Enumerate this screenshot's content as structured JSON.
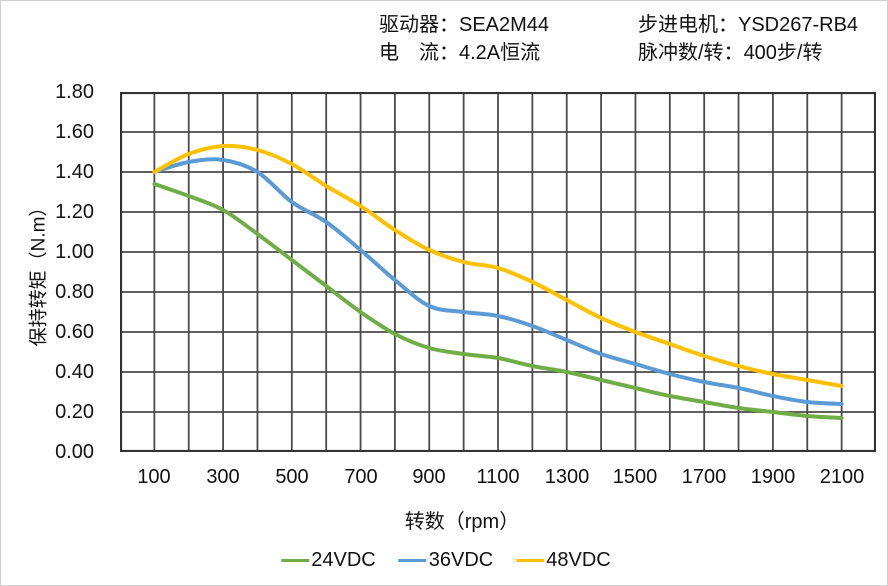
{
  "header": {
    "left": [
      {
        "label": "驱动器：",
        "value": "SEA2M44"
      },
      {
        "label": "电　流：",
        "value": "4.2A恒流"
      }
    ],
    "right": [
      {
        "label": "步进电机：",
        "value": "YSD267-RB4"
      },
      {
        "label": "脉冲数/转：",
        "value": "400步/转"
      }
    ]
  },
  "chart_data": {
    "type": "line",
    "title": "",
    "xlabel": "转数（rpm）",
    "ylabel": "保持转矩（N.m）",
    "xlim": [
      0,
      2200
    ],
    "ylim": [
      0,
      1.8
    ],
    "x_grid_step": 100,
    "y_grid_step": 0.2,
    "grid": "on",
    "grid_color": "#4a4a4a",
    "border_color": "#333333",
    "legend_position": "bottom",
    "x_tick_labels": [
      "100",
      "300",
      "500",
      "700",
      "900",
      "1100",
      "1300",
      "1500",
      "1700",
      "1900",
      "2100"
    ],
    "y_tick_labels": [
      "1.80",
      "1.60",
      "1.40",
      "1.20",
      "1.00",
      "0.80",
      "0.60",
      "0.40",
      "0.20",
      "0.00"
    ],
    "x": [
      100,
      200,
      300,
      400,
      500,
      600,
      700,
      800,
      900,
      1000,
      1100,
      1200,
      1300,
      1400,
      1500,
      1600,
      1700,
      1800,
      1900,
      2000,
      2100
    ],
    "series": [
      {
        "name": "24VDC",
        "color": "#70AD47",
        "values": [
          1.34,
          1.28,
          1.21,
          1.09,
          0.96,
          0.83,
          0.7,
          0.59,
          0.52,
          0.49,
          0.47,
          0.43,
          0.4,
          0.36,
          0.32,
          0.28,
          0.25,
          0.22,
          0.2,
          0.18,
          0.17
        ]
      },
      {
        "name": "36VDC",
        "color": "#5B9BD5",
        "values": [
          1.4,
          1.45,
          1.46,
          1.4,
          1.25,
          1.15,
          1.01,
          0.86,
          0.73,
          0.7,
          0.68,
          0.63,
          0.56,
          0.49,
          0.44,
          0.39,
          0.35,
          0.32,
          0.28,
          0.25,
          0.24
        ]
      },
      {
        "name": "48VDC",
        "color": "#FFC000",
        "values": [
          1.4,
          1.49,
          1.53,
          1.51,
          1.44,
          1.33,
          1.23,
          1.11,
          1.01,
          0.95,
          0.92,
          0.85,
          0.76,
          0.67,
          0.6,
          0.54,
          0.48,
          0.43,
          0.39,
          0.36,
          0.33
        ]
      }
    ]
  }
}
